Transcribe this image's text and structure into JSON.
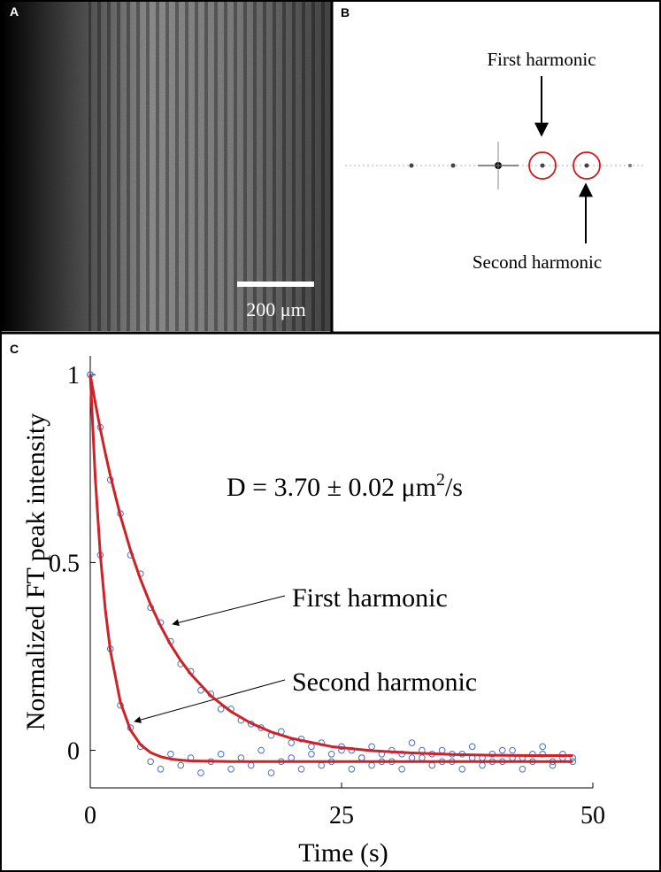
{
  "panels": {
    "a": {
      "label": "A",
      "scale_bar": "200 μm"
    },
    "b": {
      "label": "B",
      "peaks": [
        "First harmonic",
        "Second harmonic"
      ]
    },
    "c": {
      "label": "C"
    }
  },
  "chart_data": {
    "type": "scatter",
    "xlabel": "Time (s)",
    "ylabel": "Normalized FT peak intensity",
    "annotation": {
      "text": "D = 3.70 ± 0.02 μm",
      "superscript": "2",
      "suffix": "/s"
    },
    "xlim": [
      0,
      50
    ],
    "ylim": [
      -0.1,
      1.05
    ],
    "xticks": [
      0,
      25,
      50
    ],
    "yticks": [
      0,
      0.5,
      1
    ],
    "grid": false,
    "point_color": "#4a6fc4",
    "fit_color": "#cc2228",
    "x": [
      0,
      1,
      2,
      3,
      4,
      5,
      6,
      7,
      8,
      9,
      10,
      11,
      12,
      13,
      14,
      15,
      16,
      17,
      18,
      19,
      20,
      21,
      22,
      23,
      24,
      25,
      26,
      27,
      28,
      29,
      30,
      31,
      32,
      33,
      34,
      35,
      36,
      37,
      38,
      39,
      40,
      41,
      42,
      43,
      44,
      45,
      46,
      47,
      48
    ],
    "fit_x": [
      0,
      0.5,
      1,
      1.5,
      2,
      3,
      4,
      5,
      6,
      7,
      8,
      9,
      10,
      12,
      14,
      16,
      18,
      20,
      24,
      28,
      32,
      36,
      40,
      44,
      48
    ],
    "series": [
      {
        "name": "First harmonic",
        "values": [
          1.0,
          0.86,
          0.72,
          0.63,
          0.52,
          0.47,
          0.38,
          0.34,
          0.29,
          0.23,
          0.21,
          0.16,
          0.15,
          0.11,
          0.11,
          0.08,
          0.07,
          0.06,
          0.04,
          0.05,
          0.02,
          0.03,
          0.01,
          0.02,
          -0.01,
          0.01,
          0,
          -0.02,
          0.01,
          -0.03,
          0,
          -0.01,
          0.02,
          -0.02,
          -0.01,
          0,
          -0.03,
          -0.01,
          0.01,
          -0.02,
          -0.01,
          -0.03,
          0,
          -0.02,
          -0.01,
          0.01,
          -0.03,
          -0.01,
          -0.02
        ],
        "fit": [
          1.0,
          0.925,
          0.855,
          0.791,
          0.731,
          0.624,
          0.533,
          0.455,
          0.388,
          0.331,
          0.281,
          0.239,
          0.203,
          0.145,
          0.103,
          0.072,
          0.049,
          0.032,
          0.01,
          -0.001,
          -0.007,
          -0.011,
          -0.013,
          -0.014,
          -0.014
        ]
      },
      {
        "name": "Second harmonic",
        "values": [
          1.0,
          0.52,
          0.27,
          0.12,
          0.06,
          0.01,
          -0.03,
          -0.05,
          -0.01,
          -0.04,
          -0.02,
          -0.06,
          -0.03,
          -0.01,
          -0.05,
          -0.02,
          -0.04,
          0,
          -0.06,
          -0.03,
          -0.02,
          -0.05,
          -0.01,
          -0.04,
          -0.03,
          0,
          -0.05,
          -0.02,
          -0.04,
          -0.01,
          -0.03,
          -0.05,
          -0.02,
          0,
          -0.04,
          -0.03,
          -0.01,
          -0.05,
          -0.02,
          -0.04,
          -0.03,
          0,
          -0.02,
          -0.05,
          -0.03,
          -0.01,
          -0.04,
          -0.02,
          -0.03
        ],
        "fit": [
          1.0,
          0.724,
          0.521,
          0.374,
          0.265,
          0.128,
          0.054,
          0.015,
          -0.006,
          -0.017,
          -0.023,
          -0.026,
          -0.028,
          -0.029,
          -0.03,
          -0.03,
          -0.03,
          -0.03,
          -0.03,
          -0.03,
          -0.03,
          -0.03,
          -0.03,
          -0.03,
          -0.03
        ]
      }
    ]
  }
}
